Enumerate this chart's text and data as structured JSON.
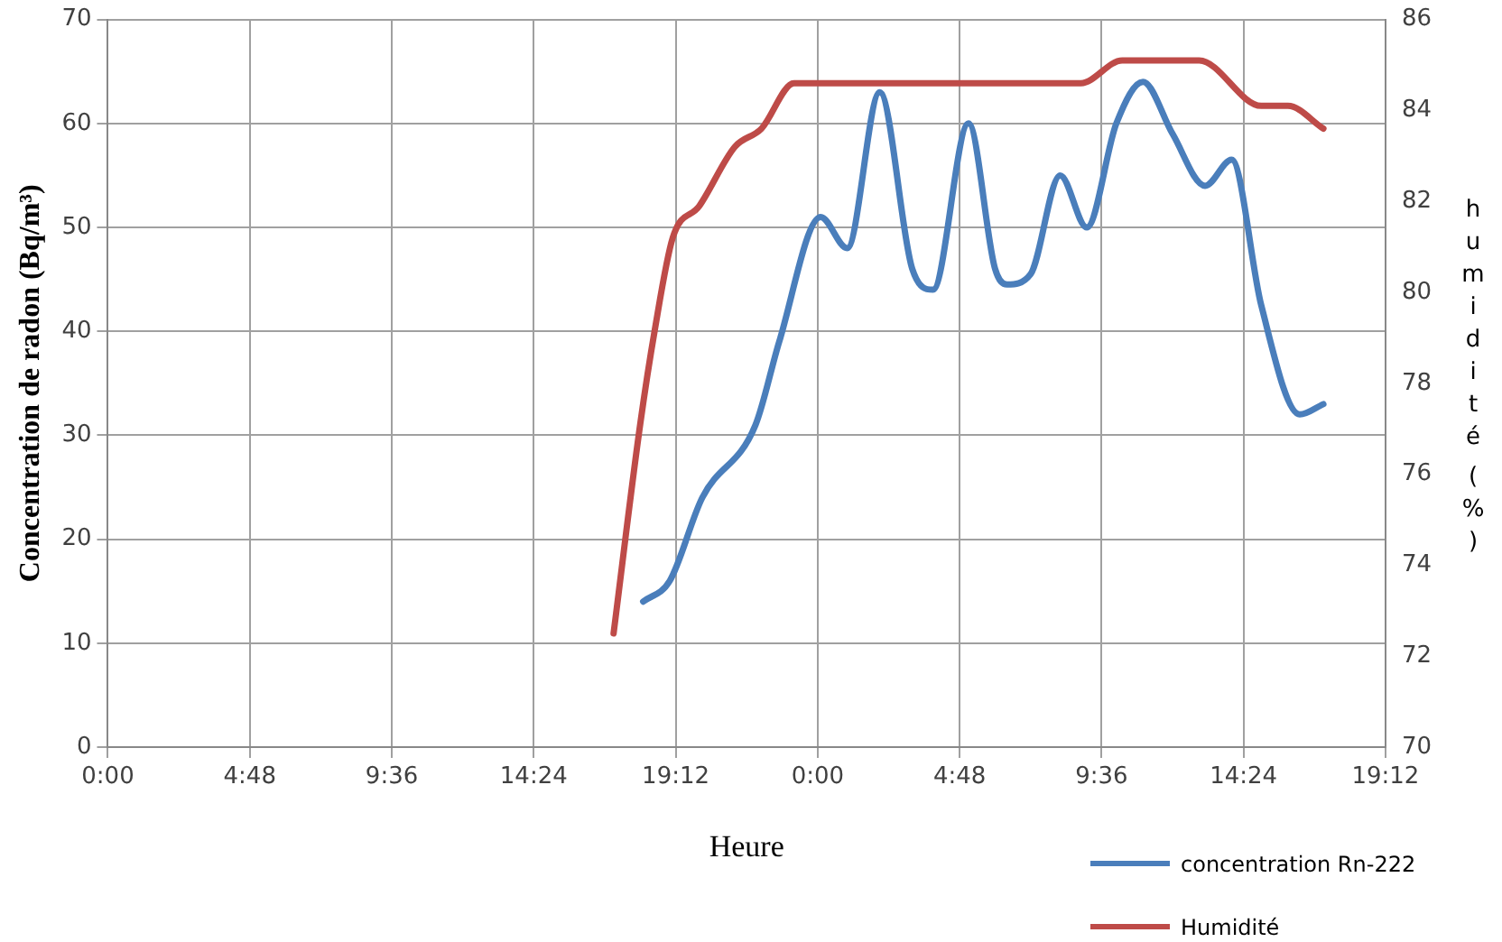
{
  "chart_data": {
    "type": "line",
    "xlabel": "Heure",
    "ylabel": "Concentration de radon (Bq/m³)",
    "y2label": "humidité (%)",
    "xlim": [
      "--01-01T00:00",
      "--01-02T19:12"
    ],
    "xticks": [
      {
        "value": "--01-01T00:00",
        "label": "0:00"
      },
      {
        "value": "--01-01T04:48",
        "label": "4:48"
      },
      {
        "value": "--01-01T09:36",
        "label": "9:36"
      },
      {
        "value": "--01-01T14:24",
        "label": "14:24"
      },
      {
        "value": "--01-01T19:12",
        "label": "19:12"
      },
      {
        "value": "--01-02T00:00",
        "label": "0:00"
      },
      {
        "value": "--01-02T04:48",
        "label": "4:48"
      },
      {
        "value": "--01-02T09:36",
        "label": "9:36"
      },
      {
        "value": "--01-02T14:24",
        "label": "14:24"
      },
      {
        "value": "--01-02T19:12",
        "label": "19:12"
      }
    ],
    "ylim": [
      0,
      70
    ],
    "yticks": [
      0,
      10,
      20,
      30,
      40,
      50,
      60,
      70
    ],
    "y2lim": [
      70,
      86
    ],
    "y2ticks": [
      70,
      72,
      74,
      76,
      78,
      80,
      82,
      84,
      86
    ],
    "grid": true,
    "legend": "bottom right",
    "series": [
      {
        "name": "concentration Rn-222",
        "color": "#4a7ebb",
        "x": [
          "--01-01T18:06",
          "--01-01T19:00",
          "--01-01T20:06",
          "--01-01T21:54",
          "--01-01T22:42",
          "--01-02T00:06",
          "--01-02T01:00",
          "--01-02T02:06",
          "--01-02T03:12",
          "--01-02T03:54",
          "--01-02T05:06",
          "--01-02T06:00",
          "--01-02T06:24",
          "--01-02T07:12",
          "--01-02T08:12",
          "--01-02T09:06",
          "--01-02T10:06",
          "--01-02T11:00",
          "--01-02T12:00",
          "--01-02T13:06",
          "--01-02T14:00",
          "--01-02T15:00",
          "--01-02T16:18",
          "--01-02T17:06"
        ],
        "values": [
          14,
          16,
          24,
          31,
          39,
          51,
          48,
          63,
          46,
          44,
          60,
          46,
          44.5,
          45.5,
          55,
          50,
          60,
          64,
          59,
          54,
          56.5,
          42.5,
          32,
          33
        ]
      },
      {
        "name": "Humidité",
        "color": "#be4b48",
        "axis": "y2",
        "x": [
          "--01-01T17:06",
          "--01-01T18:00",
          "--01-01T18:30",
          "--01-01T19:06",
          "--01-01T20:00",
          "--01-01T21:12",
          "--01-01T22:06",
          "--01-01T23:12",
          "--01-02T00:00",
          "--01-02T04:00",
          "--01-02T08:54",
          "--01-02T10:18",
          "--01-02T12:54",
          "--01-02T15:00",
          "--01-02T15:54",
          "--01-02T17:06"
        ],
        "values": [
          72.5,
          77.1,
          79.2,
          81.2,
          81.9,
          83.2,
          83.6,
          84.6,
          84.6,
          84.6,
          84.6,
          85.1,
          85.1,
          84.1,
          84.1,
          83.6
        ]
      }
    ]
  }
}
